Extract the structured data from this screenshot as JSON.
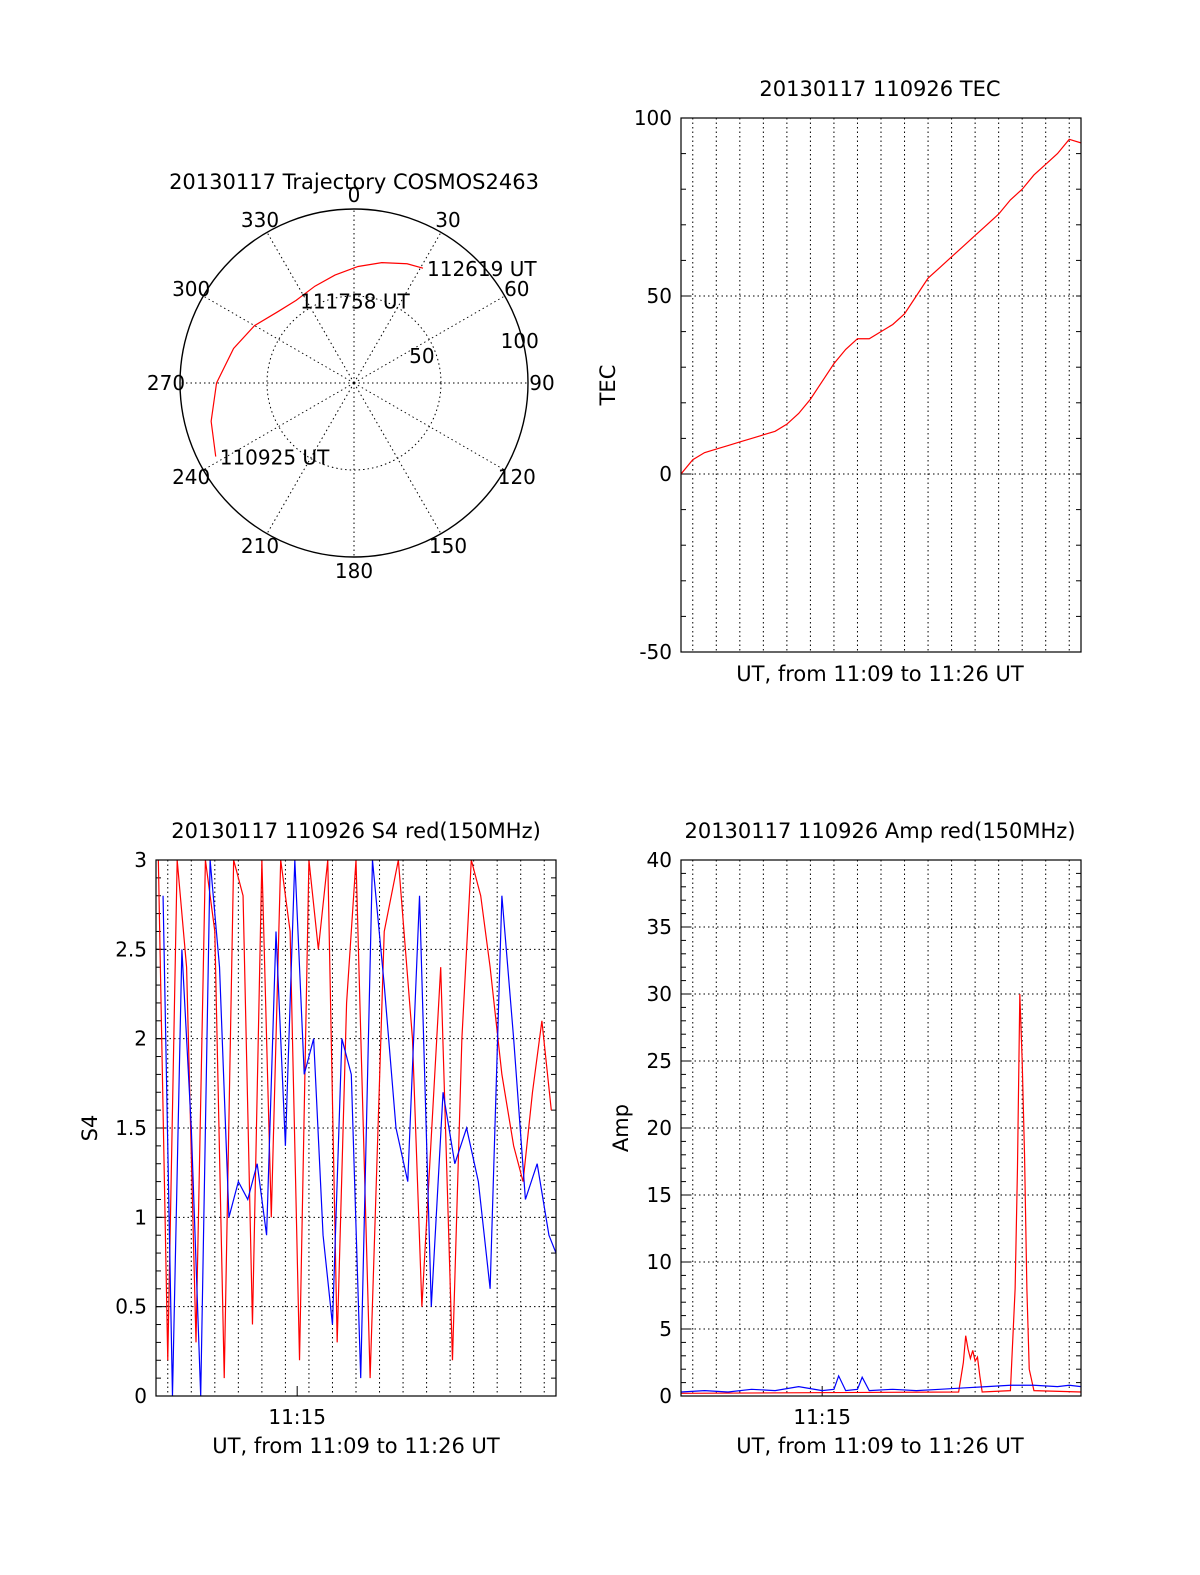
{
  "colors": {
    "red": "#ff0000",
    "blue": "#0000ff",
    "axis": "#000000"
  },
  "chart_data": [
    {
      "id": "trajectory",
      "type": "polar",
      "title": "20130117 Trajectory COSMOS2463",
      "angle_labels": [
        "0",
        "30",
        "60",
        "90",
        "120",
        "150",
        "180",
        "210",
        "240",
        "270",
        "300",
        "330"
      ],
      "radius_ticks": [
        {
          "value": 50,
          "label": "50"
        },
        {
          "value": 100,
          "label": "100"
        }
      ],
      "rlim": [
        0,
        100
      ],
      "series": [
        {
          "color": "red",
          "points": [
            {
              "az": 242,
              "r": 90
            },
            {
              "az": 255,
              "r": 85
            },
            {
              "az": 270,
              "r": 79
            },
            {
              "az": 286,
              "r": 72
            },
            {
              "az": 300,
              "r": 66
            },
            {
              "az": 313,
              "r": 60
            },
            {
              "az": 325,
              "r": 58
            },
            {
              "az": 338,
              "r": 60
            },
            {
              "az": 350,
              "r": 63
            },
            {
              "az": 2,
              "r": 67
            },
            {
              "az": 13,
              "r": 71
            },
            {
              "az": 24,
              "r": 75
            },
            {
              "az": 31,
              "r": 77
            }
          ]
        }
      ],
      "annotations": [
        {
          "text": "112619 UT",
          "at": "end"
        },
        {
          "text": "111758 UT",
          "at": "middle"
        },
        {
          "text": "110925 UT",
          "at": "start"
        }
      ]
    },
    {
      "id": "tec",
      "type": "line",
      "title": "20130117 110926 TEC",
      "ylabel": "TEC",
      "xlabel": "UT, from 11:09 to 11:26 UT",
      "xlim": [
        0,
        17
      ],
      "ylim": [
        -50,
        100
      ],
      "yticks": [
        -50,
        0,
        50,
        100
      ],
      "xticks": [],
      "grid": true,
      "series": [
        {
          "color": "red",
          "x": [
            0,
            0.5,
            1,
            1.5,
            2,
            2.5,
            3,
            3.5,
            4,
            4.5,
            5,
            5.5,
            6,
            6.5,
            7,
            7.5,
            8,
            8.5,
            9,
            9.5,
            10,
            10.5,
            11,
            11.5,
            12,
            12.5,
            13,
            13.5,
            14,
            14.5,
            15,
            15.5,
            16,
            16.5,
            17
          ],
          "y": [
            0,
            4,
            6,
            7,
            8,
            9,
            10,
            11,
            12,
            14,
            17,
            21,
            26,
            31,
            35,
            38,
            38,
            40,
            42,
            45,
            50,
            55,
            58,
            61,
            64,
            67,
            70,
            73,
            77,
            80,
            84,
            87,
            90,
            94,
            93
          ]
        }
      ]
    },
    {
      "id": "s4",
      "type": "line",
      "title": "20130117 110926 S4 red(150MHz)",
      "ylabel": "S4",
      "xlabel": "UT, from 11:09 to 11:26 UT",
      "xlim": [
        0,
        17
      ],
      "ylim": [
        0,
        3
      ],
      "yticks": [
        0,
        0.5,
        1,
        1.5,
        2,
        2.5,
        3
      ],
      "ytick_labels": [
        "0",
        "0.5",
        "1",
        "1.5",
        "2",
        "2.5",
        "3"
      ],
      "xticks": [
        {
          "value": 6,
          "label": "11:15"
        }
      ],
      "grid": true,
      "series": [
        {
          "color": "red",
          "x": [
            0.1,
            0.5,
            0.9,
            1.3,
            1.7,
            2.1,
            2.5,
            2.9,
            3.3,
            3.7,
            4.1,
            4.5,
            4.9,
            5.3,
            5.7,
            6.1,
            6.5,
            6.9,
            7.3,
            7.7,
            8.1,
            8.5,
            9.1,
            9.7,
            10.3,
            10.9,
            11.3,
            12.1,
            12.6,
            13.0,
            13.4,
            13.8,
            14.2,
            14.7,
            15.2,
            15.6,
            16.0,
            16.4,
            16.8
          ],
          "y": [
            3,
            0.2,
            3,
            2.4,
            0.3,
            3,
            2.6,
            0.1,
            3,
            2.8,
            0.4,
            3,
            1.0,
            3,
            2.6,
            0.2,
            3,
            2.5,
            3,
            0.3,
            2.2,
            3,
            0.1,
            2.6,
            3,
            2.0,
            0.5,
            2.4,
            0.2,
            2.0,
            3,
            2.8,
            2.4,
            1.8,
            1.4,
            1.2,
            1.7,
            2.1,
            1.6
          ]
        },
        {
          "color": "blue",
          "x": [
            0.3,
            0.7,
            1.1,
            1.5,
            1.9,
            2.3,
            2.7,
            3.1,
            3.5,
            3.9,
            4.3,
            4.7,
            5.1,
            5.5,
            5.9,
            6.3,
            6.7,
            7.1,
            7.5,
            7.9,
            8.3,
            8.7,
            9.2,
            9.7,
            10.2,
            10.7,
            11.2,
            11.7,
            12.2,
            12.7,
            13.2,
            13.7,
            14.2,
            14.7,
            15.2,
            15.7,
            16.2,
            16.7,
            17.0
          ],
          "y": [
            2.8,
            0.0,
            2.5,
            1.5,
            0.0,
            3,
            2.4,
            1.0,
            1.2,
            1.1,
            1.3,
            0.9,
            2.6,
            1.4,
            3,
            1.8,
            2.0,
            0.9,
            0.4,
            2.0,
            1.8,
            0.1,
            3,
            2.3,
            1.5,
            1.2,
            2.8,
            0.5,
            1.7,
            1.3,
            1.5,
            1.2,
            0.6,
            2.8,
            2.0,
            1.1,
            1.3,
            0.9,
            0.8
          ]
        }
      ]
    },
    {
      "id": "amp",
      "type": "line",
      "title": "20130117 110926 Amp red(150MHz)",
      "ylabel": "Amp",
      "xlabel": "UT, from 11:09 to 11:26 UT",
      "xlim": [
        0,
        17
      ],
      "ylim": [
        0,
        40
      ],
      "yticks": [
        0,
        5,
        10,
        15,
        20,
        25,
        30,
        35,
        40
      ],
      "xticks": [
        {
          "value": 6,
          "label": "11:15"
        }
      ],
      "grid": true,
      "series": [
        {
          "color": "red",
          "x": [
            0,
            11.8,
            12.0,
            12.1,
            12.2,
            12.3,
            12.4,
            12.5,
            12.6,
            12.7,
            12.8,
            14.0,
            14.2,
            14.3,
            14.4,
            14.5,
            14.6,
            14.7,
            14.8,
            15.0,
            17
          ],
          "y": [
            0.2,
            0.3,
            2.5,
            4.5,
            3.5,
            2.8,
            3.4,
            2.6,
            2.9,
            1.5,
            0.3,
            0.4,
            8,
            17,
            30,
            25,
            18,
            8,
            2,
            0.4,
            0.3
          ]
        },
        {
          "color": "blue",
          "x": [
            0,
            1,
            2,
            3,
            4,
            5,
            6,
            6.5,
            6.7,
            7,
            7.5,
            7.7,
            8,
            9,
            10,
            11,
            12,
            13,
            14,
            15,
            16,
            16.5,
            17
          ],
          "y": [
            0.3,
            0.4,
            0.3,
            0.5,
            0.4,
            0.7,
            0.4,
            0.5,
            1.5,
            0.4,
            0.5,
            1.4,
            0.4,
            0.5,
            0.4,
            0.5,
            0.6,
            0.7,
            0.8,
            0.8,
            0.7,
            0.8,
            0.7
          ]
        }
      ]
    }
  ]
}
